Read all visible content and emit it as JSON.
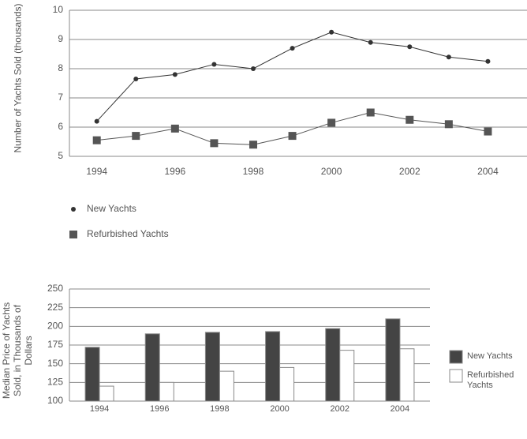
{
  "chart_data": [
    {
      "type": "line",
      "y_label": "Number of Yachts Sold (thousands)",
      "x": [
        1994,
        1995,
        1996,
        1997,
        1998,
        1999,
        2000,
        2001,
        2002,
        2003,
        2004
      ],
      "series": [
        {
          "name": "New Yachts",
          "color": "#333333",
          "marker": "circle",
          "values": [
            6.2,
            7.65,
            7.8,
            8.15,
            8.0,
            8.7,
            9.25,
            8.9,
            8.75,
            8.4,
            8.25
          ]
        },
        {
          "name": "Refurbished Yachts",
          "color": "#555555",
          "marker": "square",
          "values": [
            5.55,
            5.7,
            5.95,
            5.45,
            5.4,
            5.7,
            6.15,
            6.5,
            6.25,
            6.1,
            5.85
          ]
        }
      ],
      "xlim": [
        1993.3,
        2005
      ],
      "xticks": [
        1994,
        1996,
        1998,
        2000,
        2002,
        2004
      ],
      "ylim": [
        5,
        10
      ],
      "yticks": [
        5,
        6,
        7,
        8,
        9,
        10
      ],
      "grid": true,
      "legend": "bottom"
    },
    {
      "type": "bar",
      "y_label": "Median Price of Yachts Sold, in Thousands of Dollars",
      "categories": [
        "1994",
        "1996",
        "1998",
        "2000",
        "2002",
        "2004"
      ],
      "series": [
        {
          "name": "New Yachts",
          "color": "#444444",
          "values": [
            172,
            190,
            192,
            193,
            197,
            210
          ]
        },
        {
          "name": "Refurbished Yachts",
          "color": "#ffffff",
          "values": [
            120,
            125,
            140,
            145,
            168,
            170
          ]
        }
      ],
      "ylim": [
        100,
        250
      ],
      "yticks": [
        100,
        125,
        150,
        175,
        200,
        225,
        250
      ],
      "grid": true,
      "legend": "right"
    }
  ]
}
